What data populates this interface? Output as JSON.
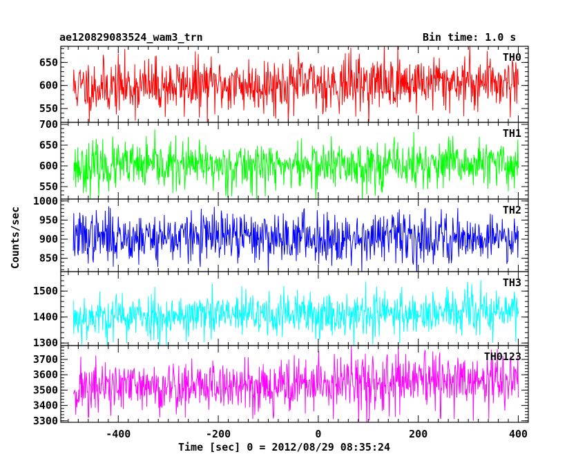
{
  "header": {
    "title": "ae120829083524_wam3_trn",
    "bin_time": "Bin time: 1.0 s"
  },
  "axes": {
    "ylabel": "Counts/sec",
    "xlabel": "Time [sec] 0 = 2012/08/29 08:35:24"
  },
  "chart_data": [
    {
      "type": "line",
      "name": "TH0",
      "color": "#ff0000",
      "x": [
        -490,
        400
      ],
      "xlim": [
        -515,
        420
      ],
      "xticks": [
        -400,
        -200,
        0,
        200,
        400
      ],
      "yticks": [
        550,
        600,
        650
      ],
      "ylim": [
        520,
        685
      ],
      "mean_start": 596,
      "mean_end": 610,
      "spread": 30,
      "seed": 11
    },
    {
      "type": "line",
      "name": "TH1",
      "color": "#00ff00",
      "x": [
        -490,
        400
      ],
      "xlim": [
        -515,
        420
      ],
      "xticks": [
        -400,
        -200,
        0,
        200,
        400
      ],
      "yticks": [
        550,
        600,
        650,
        700
      ],
      "ylim": [
        520,
        705
      ],
      "mean_start": 598,
      "mean_end": 603,
      "spread": 29,
      "seed": 23
    },
    {
      "type": "line",
      "name": "TH2",
      "color": "#0000ff",
      "x": [
        -490,
        400
      ],
      "xlim": [
        -515,
        420
      ],
      "xticks": [
        -400,
        -200,
        0,
        200,
        400
      ],
      "yticks": [
        850,
        900,
        950,
        1000
      ],
      "ylim": [
        815,
        1005
      ],
      "mean_start": 906,
      "mean_end": 905,
      "spread": 33,
      "seed": 37
    },
    {
      "type": "line",
      "name": "TH3",
      "color": "#00ffff",
      "x": [
        -490,
        400
      ],
      "xlim": [
        -515,
        420
      ],
      "xticks": [
        -400,
        -200,
        0,
        200,
        400
      ],
      "yticks": [
        1300,
        1400,
        1500
      ],
      "ylim": [
        1290,
        1575
      ],
      "mean_start": 1400,
      "mean_end": 1420,
      "spread": 45,
      "seed": 53
    },
    {
      "type": "line",
      "name": "TH0123",
      "color": "#ff00ff",
      "x": [
        -490,
        400
      ],
      "xlim": [
        -515,
        420
      ],
      "xticks": [
        -400,
        -200,
        0,
        200,
        400
      ],
      "yticks": [
        3300,
        3400,
        3500,
        3600,
        3700
      ],
      "ylim": [
        3290,
        3790
      ],
      "mean_start": 3510,
      "mean_end": 3560,
      "spread": 90,
      "seed": 71
    }
  ]
}
